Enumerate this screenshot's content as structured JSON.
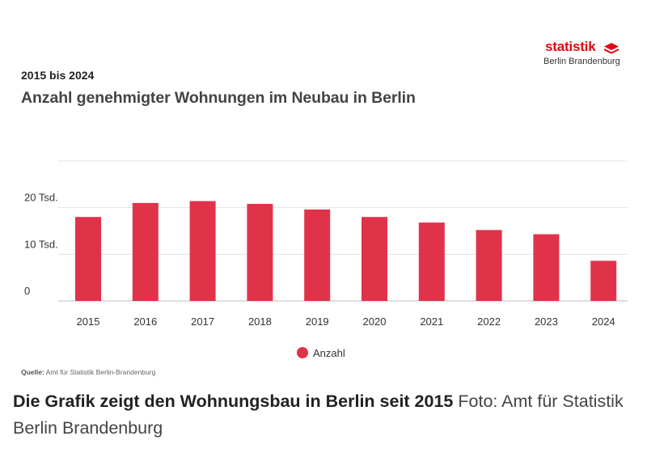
{
  "logo": {
    "name": "statistik",
    "subtitle": "Berlin Brandenburg",
    "brand_color": "#e30613"
  },
  "header": {
    "subtitle": "2015 bis 2024",
    "title": "Anzahl genehmigter Wohnungen im Neubau in Berlin"
  },
  "chart_data": {
    "type": "bar",
    "categories": [
      "2015",
      "2016",
      "2017",
      "2018",
      "2019",
      "2020",
      "2021",
      "2022",
      "2023",
      "2024"
    ],
    "series": [
      {
        "name": "Anzahl",
        "color": "#e0334a",
        "values": [
          18000,
          21000,
          21400,
          20800,
          19600,
          18000,
          16800,
          15200,
          14300,
          8600
        ]
      }
    ],
    "y_ticks": [
      {
        "value": 0,
        "label": "0"
      },
      {
        "value": 10000,
        "label": "10 Tsd."
      },
      {
        "value": 20000,
        "label": "20 Tsd."
      }
    ],
    "ylim": [
      0,
      30000
    ],
    "grid": true,
    "legend_position": "bottom-center"
  },
  "source": {
    "label": "Quelle:",
    "text": "Amt für Statistik Berlin-Brandenburg"
  },
  "caption": {
    "headline": "Die Grafik zeigt den Wohnungsbau in Berlin seit 2015",
    "credit": "Foto: Amt für Statistik Berlin Brandenburg"
  }
}
